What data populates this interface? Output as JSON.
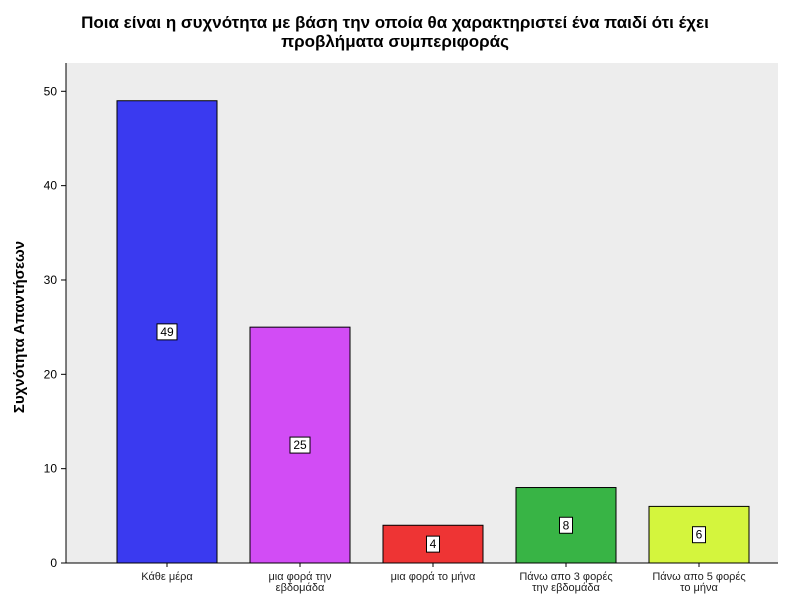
{
  "chart_data": {
    "type": "bar",
    "title_line1": "Ποια είναι η συχνότητα με βάση την οποία θα χαρακτηριστεί ένα παιδί ότι έχει",
    "title_line2": "προβλήματα συμπεριφοράς",
    "xlabel": "",
    "ylabel": "Συχνότητα Απαντήσεων",
    "ylim": [
      0,
      53
    ],
    "yticks": [
      0,
      10,
      20,
      30,
      40,
      50
    ],
    "grid": false,
    "categories": [
      [
        "Κάθε μέρα"
      ],
      [
        "μια φορά την",
        "εβδομάδα"
      ],
      [
        "μια φορά το μήνα"
      ],
      [
        "Πάνω απο 3 φορές",
        "την εβδομάδα"
      ],
      [
        "Πάνω απο 5 φορές",
        "το μήνα"
      ]
    ],
    "values": [
      49,
      25,
      4,
      8,
      6
    ],
    "data_labels": [
      "49",
      "25",
      "4",
      "8",
      "6"
    ],
    "colors": [
      "#3a3af0",
      "#d24cf5",
      "#ee3434",
      "#38b445",
      "#d4f53d"
    ],
    "plot_background": "#ededed"
  }
}
